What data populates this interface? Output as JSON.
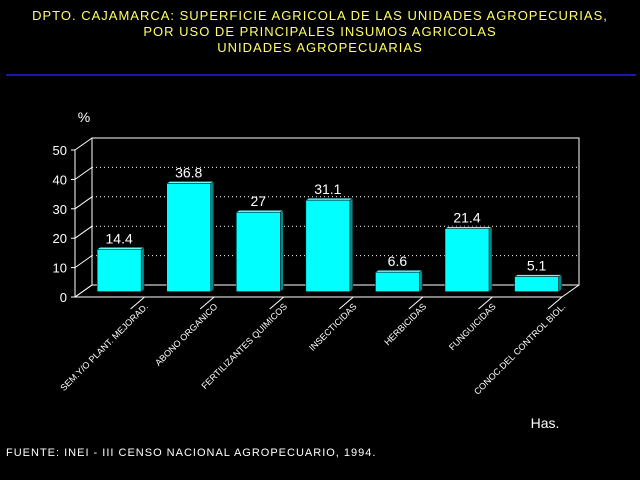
{
  "title": {
    "line1": "DPTO. CAJAMARCA: SUPERFICIE AGRICOLA DE LAS UNIDADES AGROPECURIAS,",
    "line2": "POR USO DE PRINCIPALES INSUMOS AGRICOLAS",
    "line3": "UNIDADES AGROPECUARIAS"
  },
  "footer": "FUENTE: INEI - III CENSO NACIONAL AGROPECUARIO, 1994.",
  "colors": {
    "title": "#ffff66",
    "bar": "#00ffff",
    "bar_side": "#008b8b",
    "axis": "#ffffff",
    "rule": "#1a1aa6"
  },
  "chart_data": {
    "type": "bar",
    "categories": [
      "SEM.Y/O PLANT. MEJORAD.",
      "ABONO ORGANICO",
      "FERTILIZANTES QUIMICOS",
      "INSECTICIDAS",
      "HERBICIDAS",
      "FUNGUICIDAS",
      "CONOC.DEL CONTROL BIOL."
    ],
    "values": [
      14.4,
      36.8,
      27,
      31.1,
      6.6,
      21.4,
      5.1
    ],
    "value_labels": [
      "14.4",
      "36.8",
      "27",
      "31.1",
      "6.6",
      "21.4",
      "5.1"
    ],
    "ylabel": "%",
    "xlabel": "Has.",
    "ylim": [
      0,
      50
    ],
    "yticks": [
      "0",
      "10",
      "20",
      "30",
      "40",
      "50"
    ],
    "grid": true,
    "style": "3d"
  }
}
